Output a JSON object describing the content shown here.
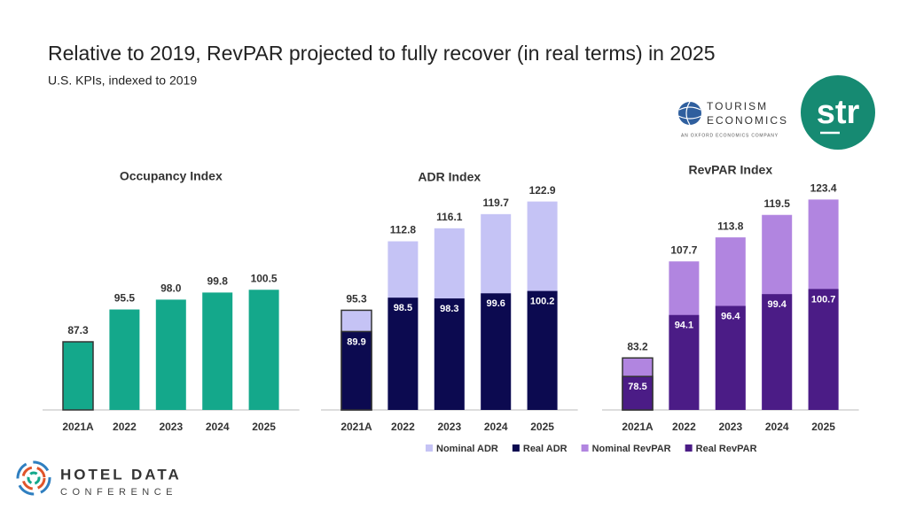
{
  "slide": {
    "title": "Relative to 2019, RevPAR projected to fully recover (in real terms) in 2025",
    "subtitle": "U.S. KPIs, indexed to 2019"
  },
  "logos": {
    "te_line1": "TOURISM",
    "te_line2": "ECONOMICS",
    "te_tagline": "AN OXFORD ECONOMICS COMPANY",
    "str": "str",
    "hdc_line1": "HOTEL DATA",
    "hdc_line2": "CONFERENCE"
  },
  "chart_data": [
    {
      "type": "bar",
      "title": "Occupancy Index",
      "categories": [
        "2021A",
        "2022",
        "2023",
        "2024",
        "2025"
      ],
      "series": [
        {
          "color": "#14a88b",
          "values": [
            87.3,
            95.5,
            98.0,
            99.8,
            100.5
          ],
          "value_labels": [
            "87.3",
            "95.5",
            "98.0",
            "99.8",
            "100.5"
          ]
        }
      ],
      "ylim": [
        70,
        130
      ]
    },
    {
      "type": "overlap_bar",
      "title": "ADR Index",
      "categories": [
        "2021A",
        "2022",
        "2023",
        "2024",
        "2025"
      ],
      "series": [
        {
          "name": "Nominal ADR",
          "color": "#c5c3f5",
          "values": [
            95.3,
            112.8,
            116.1,
            119.7,
            122.9
          ],
          "value_labels": [
            "95.3",
            "112.8",
            "116.1",
            "119.7",
            "122.9"
          ]
        },
        {
          "name": "Real ADR",
          "color": "#0c0a50",
          "values": [
            89.9,
            98.5,
            98.3,
            99.6,
            100.2
          ],
          "value_labels": [
            "89.9",
            "98.5",
            "98.3",
            "99.6",
            "100.2"
          ]
        }
      ],
      "ylim": [
        70,
        130
      ]
    },
    {
      "type": "overlap_bar",
      "title": "RevPAR Index",
      "categories": [
        "2021A",
        "2022",
        "2023",
        "2024",
        "2025"
      ],
      "series": [
        {
          "name": "Nominal RevPAR",
          "color": "#b185e0",
          "values": [
            83.2,
            107.7,
            113.8,
            119.5,
            123.4
          ],
          "value_labels": [
            "83.2",
            "107.7",
            "113.8",
            "119.5",
            "123.4"
          ]
        },
        {
          "name": "Real RevPAR",
          "color": "#4b1c86",
          "values": [
            78.5,
            94.1,
            96.4,
            99.4,
            100.7
          ],
          "value_labels": [
            "78.5",
            "94.1",
            "96.4",
            "99.4",
            "100.7"
          ]
        }
      ],
      "ylim": [
        70,
        130
      ]
    }
  ]
}
